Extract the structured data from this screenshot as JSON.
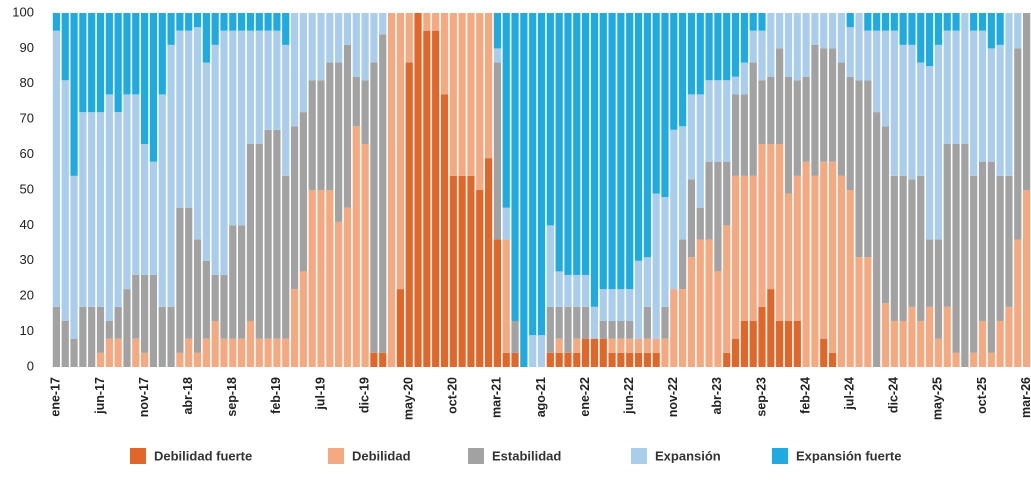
{
  "chart_data": {
    "type": "stacked_bar",
    "categories": [
      "ene-17",
      null,
      null,
      null,
      null,
      "jun-17",
      null,
      null,
      null,
      null,
      "nov-17",
      null,
      null,
      null,
      null,
      "abr-18",
      null,
      null,
      null,
      null,
      "sep-18",
      null,
      null,
      null,
      null,
      "feb-19",
      null,
      null,
      null,
      null,
      "jul-19",
      null,
      null,
      null,
      null,
      "dic-19",
      null,
      null,
      null,
      null,
      "may-20",
      null,
      null,
      null,
      null,
      "oct-20",
      null,
      null,
      null,
      null,
      "mar-21",
      null,
      null,
      null,
      null,
      "ago-21",
      null,
      null,
      null,
      null,
      "ene-22",
      null,
      null,
      null,
      null,
      "jun-22",
      null,
      null,
      null,
      null,
      "nov-22",
      null,
      null,
      null,
      null,
      "abr-23",
      null,
      null,
      null,
      null,
      "sep-23",
      null,
      null,
      null,
      null,
      "feb-24",
      null,
      null,
      null,
      null,
      "jul-24",
      null,
      null,
      null,
      null,
      "dic-24",
      null,
      null,
      null,
      null,
      "may-25",
      null,
      null,
      null,
      null,
      "oct-25",
      null,
      null,
      null,
      null,
      "mar-26"
    ],
    "series": [
      {
        "name": "Debilidad fuerte",
        "color": "#e0662a",
        "values": [
          0,
          0,
          0,
          0,
          0,
          0,
          0,
          0,
          0,
          0,
          0,
          0,
          0,
          0,
          0,
          0,
          0,
          0,
          0,
          0,
          0,
          0,
          0,
          0,
          0,
          0,
          0,
          0,
          0,
          0,
          0,
          0,
          0,
          0,
          0,
          0,
          4,
          4,
          0,
          22,
          86,
          100,
          95,
          95,
          77,
          54,
          54,
          54,
          50,
          59,
          36,
          4,
          4,
          0,
          0,
          0,
          4,
          4,
          4,
          4,
          8,
          8,
          8,
          4,
          4,
          4,
          4,
          4,
          4,
          0,
          0,
          0,
          0,
          0,
          0,
          0,
          4,
          8,
          13,
          13,
          17,
          22,
          13,
          13,
          13,
          0,
          0,
          8,
          4,
          0,
          0,
          0,
          0,
          0,
          0,
          0,
          0,
          0,
          0,
          0,
          0,
          0,
          0,
          0,
          0,
          0,
          0,
          0,
          0,
          0,
          0
        ]
      },
      {
        "name": "Debilidad",
        "color": "#f5a981",
        "values": [
          0,
          0,
          0,
          0,
          0,
          4,
          8,
          8,
          0,
          8,
          4,
          0,
          0,
          0,
          4,
          8,
          4,
          8,
          13,
          8,
          8,
          8,
          13,
          8,
          8,
          8,
          8,
          22,
          27,
          50,
          50,
          50,
          41,
          45,
          68,
          63,
          0,
          0,
          100,
          78,
          14,
          0,
          5,
          5,
          23,
          46,
          46,
          46,
          50,
          41,
          0,
          32,
          0,
          0,
          0,
          0,
          0,
          4,
          0,
          4,
          0,
          0,
          0,
          4,
          4,
          4,
          4,
          4,
          4,
          8,
          22,
          22,
          31,
          36,
          36,
          27,
          36,
          46,
          41,
          41,
          46,
          41,
          50,
          36,
          41,
          58,
          54,
          50,
          54,
          54,
          50,
          31,
          31,
          0,
          18,
          13,
          13,
          17,
          13,
          17,
          8,
          17,
          4,
          0,
          4,
          13,
          4,
          13,
          17,
          36,
          50
        ]
      },
      {
        "name": "Estabilidad",
        "color": "#a2a2a2",
        "values": [
          17,
          13,
          8,
          17,
          17,
          13,
          5,
          9,
          22,
          18,
          22,
          26,
          17,
          17,
          41,
          37,
          32,
          22,
          13,
          18,
          32,
          32,
          50,
          55,
          59,
          59,
          46,
          46,
          45,
          31,
          31,
          36,
          45,
          46,
          14,
          18,
          82,
          90,
          0,
          0,
          0,
          0,
          0,
          0,
          0,
          0,
          0,
          0,
          0,
          0,
          50,
          0,
          9,
          0,
          0,
          0,
          13,
          9,
          13,
          9,
          9,
          0,
          5,
          5,
          5,
          5,
          0,
          9,
          0,
          9,
          0,
          14,
          22,
          9,
          22,
          31,
          18,
          23,
          23,
          32,
          18,
          19,
          27,
          33,
          27,
          24,
          37,
          32,
          32,
          32,
          32,
          50,
          50,
          72,
          50,
          41,
          41,
          36,
          41,
          19,
          28,
          46,
          59,
          63,
          50,
          45,
          54,
          41,
          37,
          54,
          50
        ]
      },
      {
        "name": "Expansión",
        "color": "#abcdec",
        "values": [
          78,
          68,
          46,
          55,
          55,
          55,
          64,
          55,
          55,
          51,
          37,
          32,
          60,
          74,
          50,
          50,
          60,
          56,
          65,
          69,
          55,
          55,
          32,
          32,
          28,
          28,
          37,
          32,
          28,
          19,
          19,
          14,
          14,
          9,
          18,
          19,
          14,
          6,
          0,
          0,
          0,
          0,
          0,
          0,
          0,
          0,
          0,
          0,
          0,
          0,
          4,
          9,
          0,
          0,
          9,
          9,
          23,
          10,
          9,
          9,
          9,
          9,
          9,
          9,
          9,
          9,
          22,
          14,
          41,
          31,
          45,
          32,
          24,
          32,
          23,
          23,
          23,
          5,
          9,
          9,
          14,
          18,
          10,
          18,
          19,
          18,
          9,
          10,
          10,
          14,
          14,
          19,
          14,
          23,
          27,
          41,
          37,
          38,
          32,
          49,
          55,
          32,
          32,
          37,
          41,
          37,
          32,
          37,
          46,
          10,
          0
        ]
      },
      {
        "name": "Expansión fuerte",
        "color": "#1fabe0",
        "values": [
          5,
          19,
          46,
          28,
          28,
          28,
          23,
          28,
          23,
          23,
          37,
          42,
          23,
          9,
          5,
          5,
          4,
          14,
          9,
          5,
          5,
          5,
          5,
          5,
          5,
          5,
          9,
          0,
          0,
          0,
          0,
          0,
          0,
          0,
          0,
          0,
          0,
          0,
          0,
          0,
          0,
          0,
          0,
          0,
          0,
          0,
          0,
          0,
          0,
          0,
          10,
          55,
          87,
          100,
          91,
          91,
          60,
          73,
          74,
          74,
          74,
          83,
          78,
          78,
          78,
          78,
          70,
          69,
          51,
          52,
          33,
          32,
          23,
          23,
          19,
          19,
          19,
          18,
          14,
          5,
          5,
          0,
          0,
          0,
          0,
          0,
          0,
          0,
          0,
          0,
          4,
          0,
          5,
          5,
          5,
          5,
          9,
          9,
          14,
          15,
          9,
          5,
          5,
          0,
          5,
          5,
          10,
          9,
          0,
          0,
          0
        ]
      }
    ],
    "ylim": [
      0,
      100
    ],
    "yticks": [
      0,
      10,
      20,
      30,
      40,
      50,
      60,
      70,
      80,
      90,
      100
    ],
    "grid": false,
    "legend": "bottom"
  }
}
